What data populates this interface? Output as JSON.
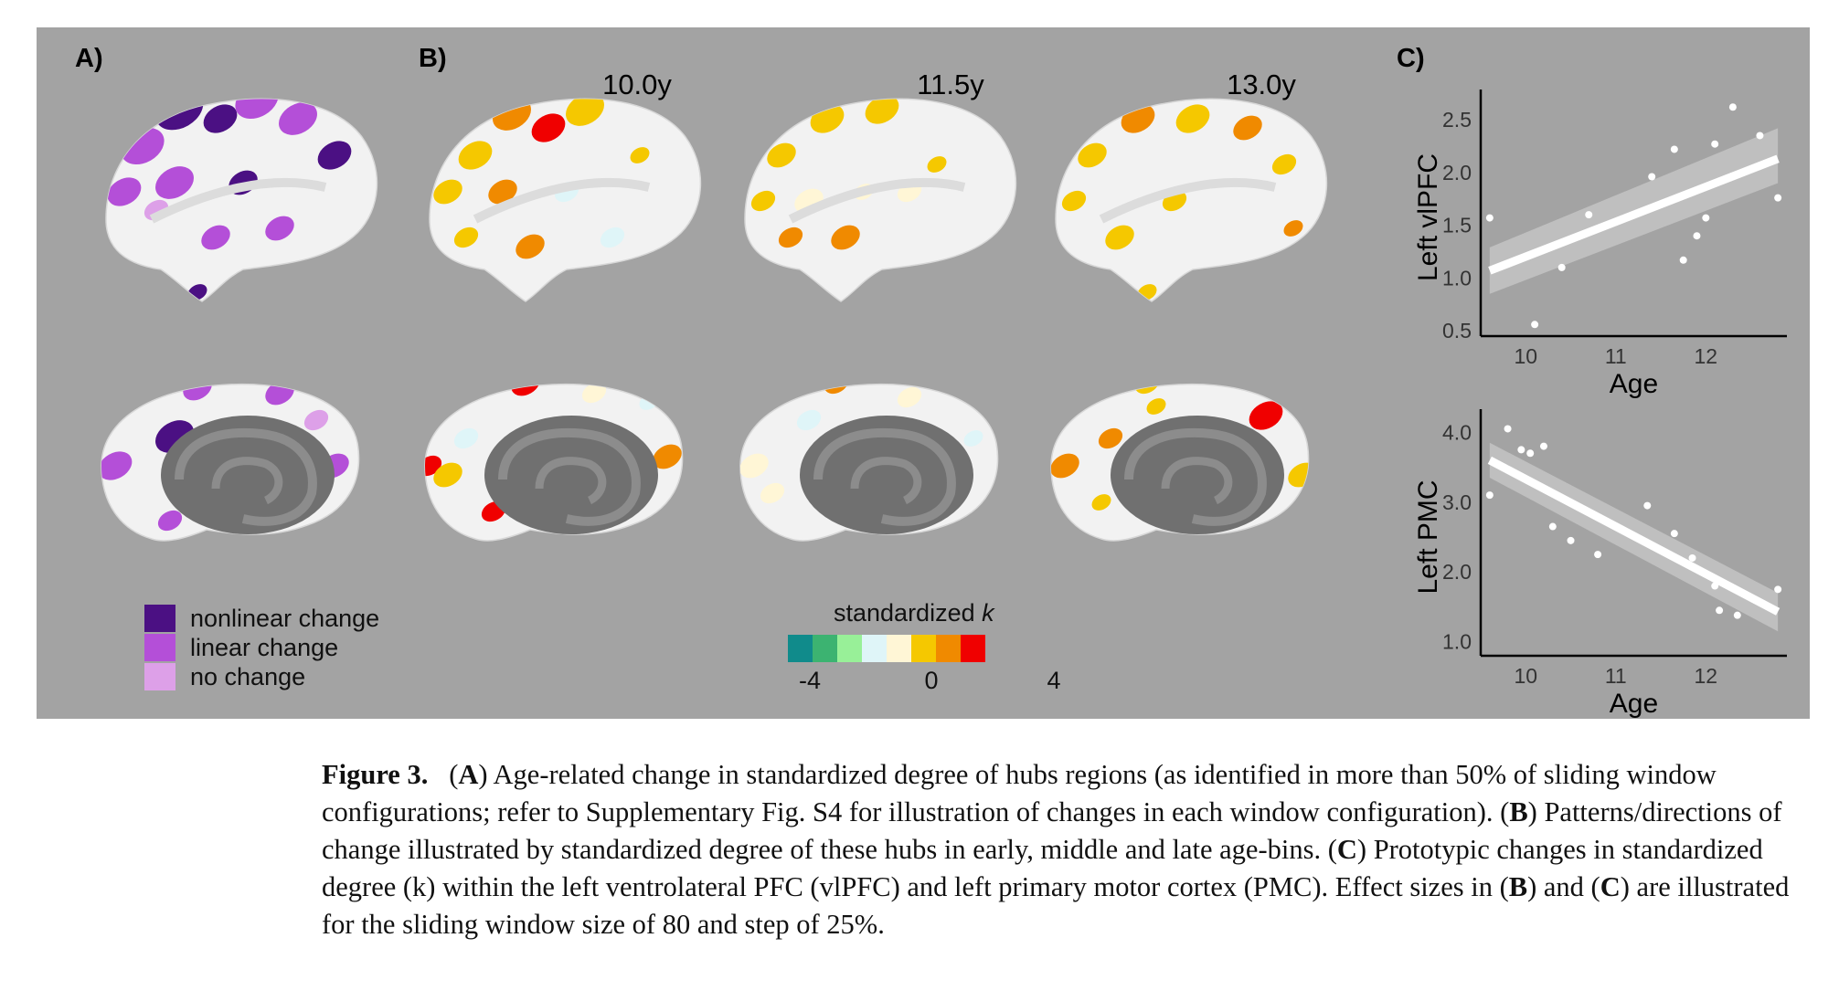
{
  "panels": {
    "a": "A)",
    "b": "B)",
    "c": "C)"
  },
  "ages": [
    "10.0y",
    "11.5y",
    "13.0y"
  ],
  "legend": {
    "items": [
      {
        "label": "nonlinear change",
        "color": "#4b1083"
      },
      {
        "label": "linear change",
        "color": "#b44fd8"
      },
      {
        "label": "no change",
        "color": "#dda0e8"
      }
    ]
  },
  "colorbar": {
    "title": "standardized ",
    "title_italic": "k",
    "colors": [
      "#108b8b",
      "#3cb371",
      "#98f098",
      "#dff5f8",
      "#fff6d6",
      "#f5c800",
      "#f08a00",
      "#f00000"
    ],
    "ticks": [
      "-4",
      "0",
      "4"
    ]
  },
  "colors": {
    "surface": "#f2f2f2",
    "medial_wall": "#707070",
    "figure_bg": "#a3a3a3"
  },
  "chart_data": [
    {
      "type": "scatter",
      "ylabel": "Left vlPFC",
      "xlabel": "Age",
      "x_ticks": [
        10,
        11,
        12
      ],
      "y_ticks": [
        "0.5",
        "1.0",
        "1.5",
        "2.0",
        "2.5"
      ],
      "xlim": [
        9.5,
        12.9
      ],
      "ylim": [
        0.45,
        2.7
      ],
      "points": [
        [
          9.6,
          1.57
        ],
        [
          10.1,
          0.56
        ],
        [
          10.4,
          1.1
        ],
        [
          10.7,
          1.6
        ],
        [
          11.4,
          1.96
        ],
        [
          11.65,
          2.22
        ],
        [
          11.75,
          1.17
        ],
        [
          11.9,
          1.4
        ],
        [
          12.0,
          1.57
        ],
        [
          12.1,
          2.27
        ],
        [
          12.3,
          2.62
        ],
        [
          12.6,
          2.35
        ],
        [
          12.8,
          1.76
        ]
      ],
      "fit": [
        [
          9.6,
          1.07
        ],
        [
          12.8,
          2.13
        ]
      ],
      "ci_start": [
        0.85,
        1.29
      ],
      "ci_end": [
        1.9,
        2.42
      ]
    },
    {
      "type": "scatter",
      "ylabel": "Left PMC",
      "xlabel": "Age",
      "x_ticks": [
        10,
        11,
        12
      ],
      "y_ticks": [
        "1.0",
        "2.0",
        "3.0",
        "4.0"
      ],
      "xlim": [
        9.5,
        12.9
      ],
      "ylim": [
        0.8,
        4.2
      ],
      "points": [
        [
          9.6,
          3.1
        ],
        [
          9.8,
          4.05
        ],
        [
          9.95,
          3.75
        ],
        [
          10.05,
          3.7
        ],
        [
          10.2,
          3.8
        ],
        [
          10.3,
          2.65
        ],
        [
          10.5,
          2.45
        ],
        [
          10.8,
          2.25
        ],
        [
          11.35,
          2.95
        ],
        [
          11.65,
          2.55
        ],
        [
          11.85,
          2.2
        ],
        [
          12.1,
          1.8
        ],
        [
          12.15,
          1.45
        ],
        [
          12.35,
          1.38
        ],
        [
          12.8,
          1.75
        ]
      ],
      "fit": [
        [
          9.6,
          3.6
        ],
        [
          12.8,
          1.43
        ]
      ],
      "ci_start": [
        3.35,
        3.85
      ],
      "ci_end": [
        1.15,
        1.7
      ]
    }
  ],
  "caption": {
    "label": "Figure 3.",
    "a_letter": "A",
    "a_text": ") Age-related change in standardized degree of hubs regions (as identified in more than 50% of sliding window configurations; refer to Supplementary Fig. S4 for illustration of changes in each window configuration). (",
    "b_letter": "B",
    "b_text": ") Patterns/directions of change illustrated by standardized degree of these hubs in early, middle and late age-bins. (",
    "c_letter": "C",
    "c_text": ") Prototypic changes in standardized degree (k) within the left ventrolateral PFC (vlPFC) and left primary motor cortex (PMC). Effect sizes in (",
    "b2_letter": "B",
    "and_text": ") and (",
    "c2_letter": "C",
    "end_text": ") are illustrated for the sliding window size of 80 and step of 25%."
  }
}
